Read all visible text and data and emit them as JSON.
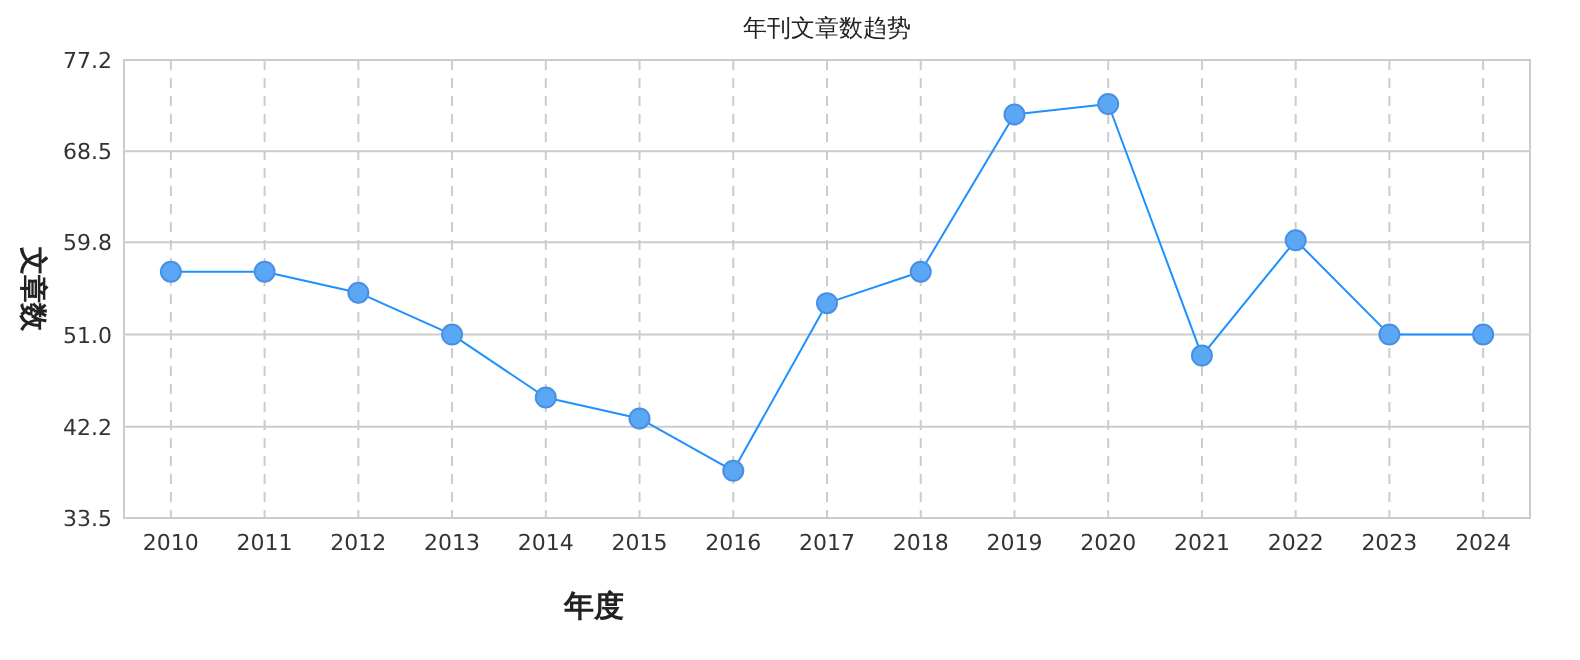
{
  "chart_data": {
    "type": "line",
    "title": "年刊文章数趋势",
    "xlabel": "年度",
    "ylabel": "文章数",
    "categories": [
      "2010",
      "2011",
      "2012",
      "2013",
      "2014",
      "2015",
      "2016",
      "2017",
      "2018",
      "2019",
      "2020",
      "2021",
      "2022",
      "2023",
      "2024"
    ],
    "series": [
      {
        "color": "#1e90ff",
        "values": [
          57,
          57,
          55,
          51,
          45,
          43,
          38,
          54,
          57,
          72,
          73,
          49,
          60,
          51,
          51
        ]
      }
    ],
    "ylim": [
      33.5,
      77.2
    ],
    "yticks": [
      33.5,
      42.2,
      {
        "value": 51,
        "label": "51.0"
      },
      59.8,
      68.5,
      77.2
    ],
    "grid": true,
    "marker": "circle",
    "line_style": "solid"
  }
}
